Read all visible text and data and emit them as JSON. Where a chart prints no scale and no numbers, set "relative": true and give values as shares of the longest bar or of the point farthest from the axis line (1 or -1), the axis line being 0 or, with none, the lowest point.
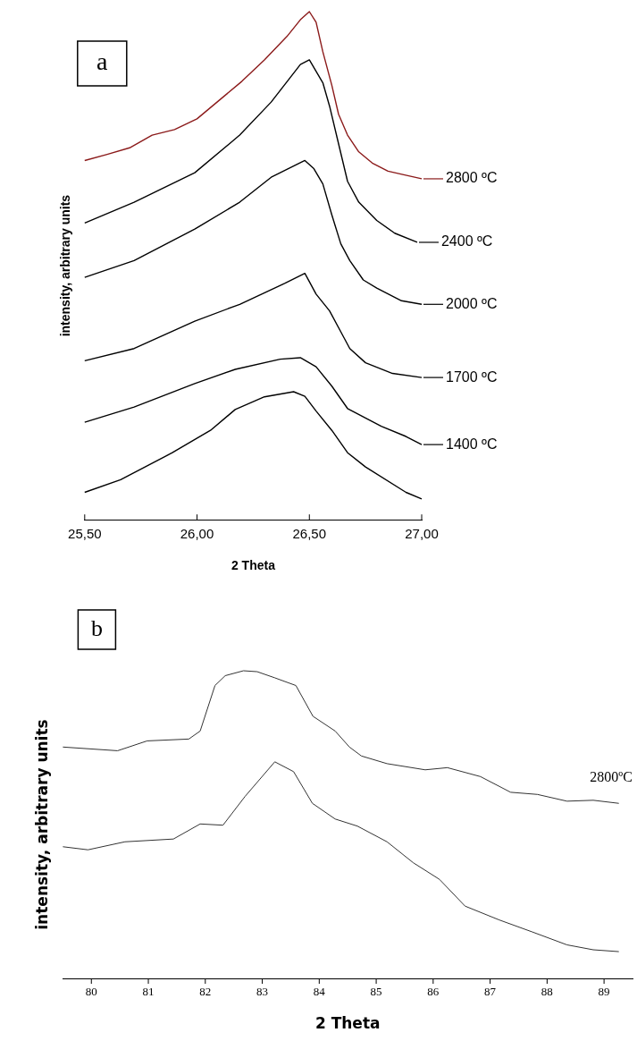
{
  "chart_data": [
    {
      "type": "line",
      "relative": true,
      "legend": "right",
      "xlabel": "2 Theta",
      "ylabel": "intensity, arbitrary units",
      "annotations": [
        "a"
      ],
      "xlim": [
        25.5,
        27.0
      ],
      "xticks": [
        {
          "value": 25.5,
          "label": "25,50"
        },
        {
          "value": 26.0,
          "label": "26,00"
        },
        {
          "value": 26.5,
          "label": "26,50"
        },
        {
          "value": 27.0,
          "label": "27,00"
        }
      ],
      "series": [
        {
          "name": "2800 ºC",
          "color": "#8b1a1a",
          "x": [
            25.5,
            25.6,
            25.7,
            25.8,
            25.9,
            26.0,
            26.1,
            26.2,
            26.3,
            26.4,
            26.46,
            26.5,
            26.53,
            26.56,
            26.6,
            26.63,
            26.67,
            26.72,
            26.78,
            26.85,
            26.92,
            27.0
          ],
          "values": [
            0.707,
            0.719,
            0.732,
            0.757,
            0.768,
            0.789,
            0.826,
            0.863,
            0.905,
            0.951,
            0.984,
            1.0,
            0.979,
            0.921,
            0.855,
            0.798,
            0.757,
            0.724,
            0.702,
            0.686,
            0.679,
            0.671
          ]
        },
        {
          "name": "2400 ºC",
          "color": "#000000",
          "x": [
            25.5,
            25.72,
            25.99,
            26.19,
            26.33,
            26.46,
            26.5,
            26.56,
            26.59,
            26.63,
            26.67,
            26.72,
            26.8,
            26.88,
            26.98
          ],
          "values": [
            0.584,
            0.625,
            0.683,
            0.757,
            0.822,
            0.896,
            0.905,
            0.86,
            0.814,
            0.74,
            0.666,
            0.625,
            0.589,
            0.564,
            0.546
          ]
        },
        {
          "name": "2000 ºC",
          "color": "#000000",
          "x": [
            25.5,
            25.72,
            25.99,
            26.19,
            26.33,
            26.48,
            26.52,
            26.56,
            26.6,
            26.64,
            26.68,
            26.74,
            26.8,
            26.91,
            27.0
          ],
          "values": [
            0.477,
            0.51,
            0.572,
            0.625,
            0.674,
            0.707,
            0.691,
            0.661,
            0.6,
            0.543,
            0.51,
            0.472,
            0.456,
            0.431,
            0.424
          ]
        },
        {
          "name": "1700 ºC",
          "color": "#000000",
          "x": [
            25.5,
            25.72,
            25.99,
            26.19,
            26.39,
            26.48,
            26.53,
            26.59,
            26.64,
            26.68,
            26.75,
            26.87,
            27.0
          ],
          "values": [
            0.313,
            0.337,
            0.391,
            0.424,
            0.465,
            0.485,
            0.444,
            0.411,
            0.37,
            0.337,
            0.309,
            0.288,
            0.28
          ]
        },
        {
          "name": "1400 ºC",
          "color": "#000000",
          "x": [
            25.5,
            25.72,
            25.99,
            26.17,
            26.37,
            26.46,
            26.53,
            26.6,
            26.67,
            26.82,
            26.93,
            27.0
          ],
          "values": [
            0.192,
            0.222,
            0.268,
            0.296,
            0.316,
            0.319,
            0.301,
            0.263,
            0.219,
            0.184,
            0.164,
            0.148
          ]
        },
        {
          "color": "#000000",
          "x": [
            25.5,
            25.66,
            25.89,
            26.06,
            26.17,
            26.3,
            26.43,
            26.48,
            26.53,
            26.6,
            26.67,
            26.75,
            26.93,
            27.0
          ],
          "values": [
            0.054,
            0.079,
            0.132,
            0.176,
            0.217,
            0.242,
            0.252,
            0.243,
            0.214,
            0.176,
            0.132,
            0.104,
            0.054,
            0.041
          ]
        }
      ]
    },
    {
      "type": "line",
      "relative": true,
      "xlabel": "2 Theta",
      "ylabel": "intensity, arbitrary units",
      "annotations": [
        "b"
      ],
      "xlim": [
        79.5,
        89.5
      ],
      "xticks": [
        80,
        81,
        82,
        83,
        84,
        85,
        86,
        87,
        88,
        89
      ],
      "series": [
        {
          "name": "2800ºC",
          "color": "#333333",
          "x": [
            79.5,
            80.46,
            80.98,
            81.71,
            81.91,
            82.17,
            82.35,
            82.67,
            82.91,
            83.22,
            83.59,
            83.89,
            84.28,
            84.53,
            84.74,
            85.19,
            85.86,
            86.25,
            86.83,
            87.36,
            87.83,
            88.35,
            88.81,
            89.26
          ],
          "values": [
            0.752,
            0.74,
            0.772,
            0.778,
            0.804,
            0.952,
            0.984,
            1.0,
            0.997,
            0.977,
            0.952,
            0.852,
            0.804,
            0.752,
            0.723,
            0.698,
            0.678,
            0.685,
            0.656,
            0.605,
            0.598,
            0.576,
            0.579,
            0.569
          ]
        },
        {
          "color": "#333333",
          "x": [
            79.5,
            79.94,
            80.59,
            81.44,
            81.91,
            82.31,
            82.7,
            83.22,
            83.55,
            83.88,
            84.28,
            84.67,
            85.19,
            85.65,
            86.11,
            86.56,
            87.16,
            87.74,
            88.35,
            88.81,
            89.26
          ],
          "values": [
            0.428,
            0.418,
            0.444,
            0.453,
            0.502,
            0.498,
            0.592,
            0.704,
            0.672,
            0.569,
            0.518,
            0.495,
            0.444,
            0.376,
            0.322,
            0.235,
            0.19,
            0.151,
            0.109,
            0.093,
            0.087
          ]
        }
      ]
    }
  ]
}
